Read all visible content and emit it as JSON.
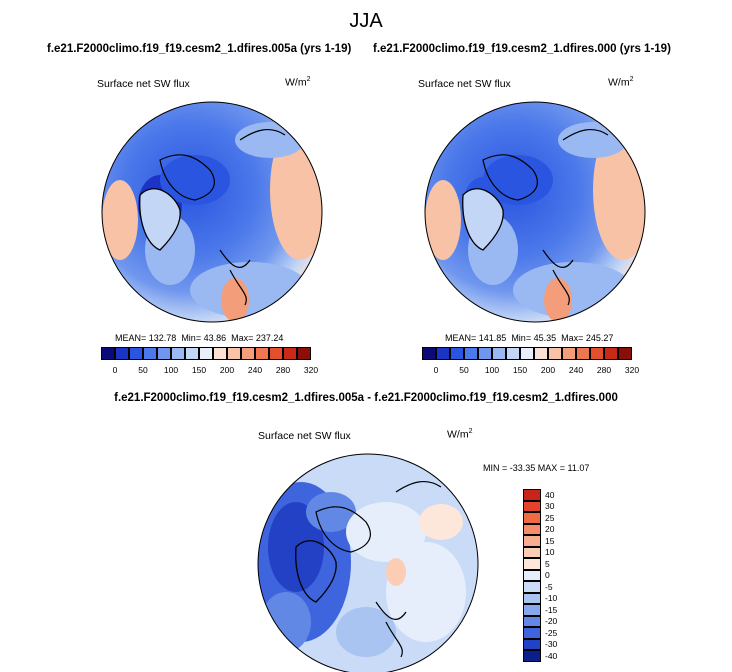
{
  "title": "JJA",
  "panels": [
    {
      "run": "f.e21.F2000climo.f19_f19.cesm2_1.dfires.005a (yrs 1-19)",
      "variable": "Surface net SW flux",
      "units": "W/m",
      "units_exp": "2",
      "mean": "MEAN= 132.78",
      "min": "Min=  43.86",
      "max": "Max= 237.24"
    },
    {
      "run": "f.e21.F2000climo.f19_f19.cesm2_1.dfires.000 (yrs 1-19)",
      "variable": "Surface net SW flux",
      "units": "W/m",
      "units_exp": "2",
      "mean": "MEAN= 141.85",
      "min": "Min=  45.35",
      "max": "Max= 245.27"
    }
  ],
  "abs_colorbar": {
    "colors": [
      "#0a0a78",
      "#1c34c6",
      "#2a55e0",
      "#4b78ea",
      "#7097ee",
      "#9ab9f2",
      "#c3d6f6",
      "#e8eefa",
      "#fbe1d4",
      "#f8c2a6",
      "#f49d7a",
      "#ee7650",
      "#e24f2c",
      "#c92a18",
      "#8c0e08"
    ],
    "ticks": [
      "0",
      "50",
      "100",
      "150",
      "200",
      "240",
      "280",
      "320"
    ]
  },
  "diff": {
    "title": "f.e21.F2000climo.f19_f19.cesm2_1.dfires.005a - f.e21.F2000climo.f19_f19.cesm2_1.dfires.000",
    "variable": "Surface net SW flux",
    "units": "W/m",
    "units_exp": "2",
    "minmax": "MIN = -33.35  MAX =  11.07",
    "colorbar": {
      "colors": [
        "#c9231a",
        "#e2432a",
        "#ef6a45",
        "#f58d6a",
        "#f8ad8f",
        "#fbcdb4",
        "#fde7da",
        "#e7eefb",
        "#c9dbf7",
        "#a9c4f1",
        "#87a8eb",
        "#6288e6",
        "#3e64de",
        "#2341c4",
        "#0a1e8c"
      ],
      "ticks": [
        "40",
        "30",
        "25",
        "20",
        "15",
        "10",
        "5",
        "0",
        "-5",
        "-10",
        "-15",
        "-20",
        "-25",
        "-30",
        "-40"
      ]
    }
  }
}
